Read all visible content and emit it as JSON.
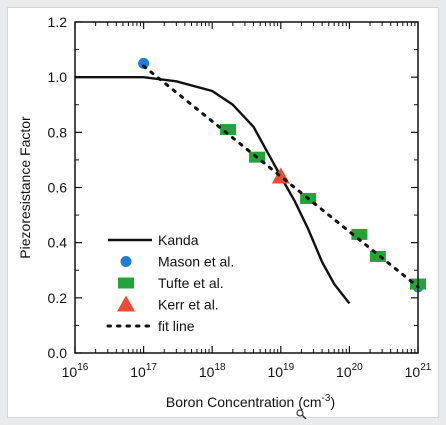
{
  "chart_data": {
    "type": "line",
    "xlabel": "Boron Concentration (cm",
    "xlabel_sup": "-3",
    "xlabel_end": ")",
    "ylabel": "Piezoresistance Factor",
    "xscale": "log",
    "xlim": [
      1e+16,
      1e+21
    ],
    "ylim": [
      0.0,
      1.2
    ],
    "x_ticks": [
      {
        "value": 1e+16,
        "base": "10",
        "exp": "16"
      },
      {
        "value": 1e+17,
        "base": "10",
        "exp": "17"
      },
      {
        "value": 1e+18,
        "base": "10",
        "exp": "18"
      },
      {
        "value": 1e+19,
        "base": "10",
        "exp": "19"
      },
      {
        "value": 1e+20,
        "base": "10",
        "exp": "20"
      },
      {
        "value": 1e+21,
        "base": "10",
        "exp": "21"
      }
    ],
    "y_ticks": [
      "0.0",
      "0.2",
      "0.4",
      "0.6",
      "0.8",
      "1.0",
      "1.2"
    ],
    "legend_position": "lower-left",
    "series": [
      {
        "name": "Kanda",
        "kind": "solid-line",
        "color": "#111111",
        "points": [
          [
            1e+16,
            1.0
          ],
          [
            1e+17,
            1.0
          ],
          [
            3e+17,
            0.985
          ],
          [
            1e+18,
            0.95
          ],
          [
            2e+18,
            0.9
          ],
          [
            4e+18,
            0.82
          ],
          [
            7e+18,
            0.71
          ],
          [
            1e+19,
            0.64
          ],
          [
            1.6e+19,
            0.55
          ],
          [
            2.5e+19,
            0.45
          ],
          [
            4e+19,
            0.33
          ],
          [
            6e+19,
            0.25
          ],
          [
            1e+20,
            0.18
          ]
        ]
      },
      {
        "name": "Mason et al.",
        "kind": "circle",
        "color": "#1f7ed1",
        "points": [
          [
            1e+17,
            1.05
          ],
          [
            1e+21,
            0.24
          ]
        ]
      },
      {
        "name": "Tufte et al.",
        "kind": "square",
        "color": "#23a33a",
        "points": [
          [
            1.7e+18,
            0.81
          ],
          [
            4.5e+18,
            0.71
          ],
          [
            2.5e+19,
            0.56
          ],
          [
            1.4e+20,
            0.43
          ],
          [
            2.6e+20,
            0.35
          ],
          [
            1e+21,
            0.25
          ]
        ]
      },
      {
        "name": "Kerr et al.",
        "kind": "triangle",
        "color": "#ee4b37",
        "points": [
          [
            1e+19,
            0.64
          ]
        ]
      },
      {
        "name": "fit line",
        "kind": "dotted-line",
        "color": "#111111",
        "points": [
          [
            1e+17,
            1.04
          ],
          [
            1e+21,
            0.24
          ]
        ]
      }
    ]
  }
}
